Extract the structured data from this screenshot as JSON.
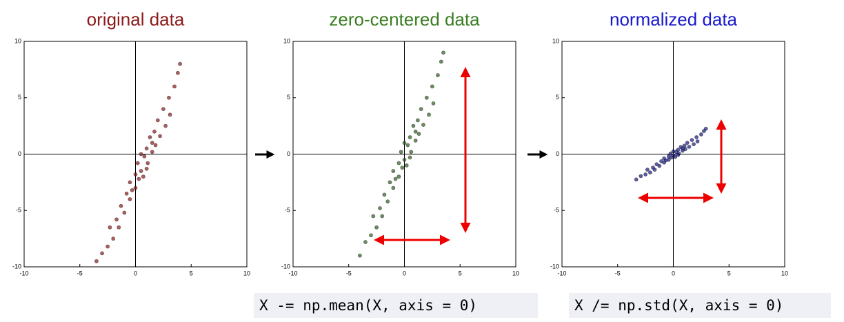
{
  "chart_data": [
    {
      "type": "scatter",
      "title": "original data",
      "color": "#8b1a1a",
      "title_color": "#8b1a1a",
      "xlim": [
        -10,
        10
      ],
      "ylim": [
        -10,
        10
      ],
      "xticks": [
        -10,
        -5,
        0,
        5,
        10
      ],
      "yticks": [
        -10,
        -5,
        0,
        5,
        10
      ],
      "x": [
        -3,
        -2.5,
        -2.3,
        -2,
        -1.7,
        -1.5,
        -1.3,
        -1,
        -0.8,
        -0.5,
        -0.5,
        -0.3,
        0,
        0,
        0.2,
        0.5,
        0.5,
        0.7,
        0.8,
        1,
        1.1,
        1.3,
        1.5,
        1.7,
        1.8,
        2,
        2.2,
        2.5,
        2.7,
        3,
        3.1,
        3.5,
        3.8,
        4,
        -3.5,
        1,
        0.3,
        1.5
      ],
      "y": [
        -8.8,
        -8.2,
        -6.5,
        -7.5,
        -5.8,
        -6.5,
        -4.6,
        -5.2,
        -3.5,
        -4,
        -2.5,
        -3.2,
        -1.8,
        -3,
        -0.8,
        -1.5,
        0,
        -2,
        -0.2,
        0.5,
        -0.8,
        1.5,
        0.2,
        2,
        0.8,
        3,
        1.6,
        4,
        2.5,
        5,
        3.5,
        6,
        7.2,
        8,
        -9.5,
        -1.3,
        -2.2,
        1
      ]
    },
    {
      "type": "scatter",
      "title": "zero-centered data",
      "color": "#2d5e1f",
      "title_color": "#3a7d22",
      "xlim": [
        -10,
        10
      ],
      "ylim": [
        -10,
        10
      ],
      "xticks": [
        -10,
        -5,
        0,
        5,
        10
      ],
      "yticks": [
        -10,
        -5,
        0,
        5,
        10
      ],
      "x": [
        -3.5,
        -3,
        -2.8,
        -2.5,
        -2.2,
        -2,
        -1.8,
        -1.5,
        -1.3,
        -1,
        -1,
        -0.8,
        -0.5,
        -0.5,
        -0.3,
        0,
        0,
        0.2,
        0.3,
        0.5,
        0.6,
        0.8,
        1,
        1.2,
        1.3,
        1.5,
        1.7,
        2,
        2.2,
        2.5,
        2.6,
        3,
        3.3,
        3.5,
        -4,
        0.5,
        -0.2,
        1
      ],
      "y": [
        -7.8,
        -7.2,
        -5.5,
        -6.5,
        -4.8,
        -5.5,
        -3.6,
        -4.2,
        -2.5,
        -3,
        -1.5,
        -2.2,
        -0.8,
        -2,
        0.2,
        -0.5,
        1,
        -1,
        0.8,
        1.5,
        0.2,
        2.5,
        1.2,
        3,
        1.8,
        4,
        2.6,
        5,
        3.5,
        6,
        4.5,
        7,
        8.2,
        9,
        -9,
        -0.3,
        -1.2,
        2
      ]
    },
    {
      "type": "scatter",
      "title": "normalized data",
      "color": "#1a1a80",
      "title_color": "#1a1acc",
      "xlim": [
        -10,
        10
      ],
      "ylim": [
        -10,
        10
      ],
      "xticks": [
        -10,
        -5,
        0,
        5,
        10
      ],
      "yticks": [
        -10,
        -5,
        0,
        5,
        10
      ],
      "x": [
        -2.92,
        -2.5,
        -2.33,
        -2.08,
        -1.83,
        -1.67,
        -1.5,
        -1.25,
        -1.08,
        -0.83,
        -0.83,
        -0.67,
        -0.42,
        -0.42,
        -0.25,
        0,
        0,
        0.17,
        0.25,
        0.42,
        0.5,
        0.67,
        0.83,
        1,
        1.08,
        1.25,
        1.42,
        1.67,
        1.83,
        2.08,
        2.17,
        2.5,
        2.75,
        2.92,
        -3.33,
        0.42,
        -0.17,
        0.83
      ],
      "y": [
        -1.95,
        -1.8,
        -1.38,
        -1.63,
        -1.2,
        -1.38,
        -0.9,
        -1.05,
        -0.63,
        -0.75,
        -0.38,
        -0.55,
        -0.2,
        -0.5,
        0.05,
        -0.13,
        0.25,
        -0.25,
        0.2,
        0.38,
        0.05,
        0.63,
        0.3,
        0.75,
        0.45,
        1,
        0.65,
        1.25,
        0.88,
        1.5,
        1.13,
        1.75,
        2.05,
        2.25,
        -2.25,
        -0.08,
        -0.3,
        0.5
      ]
    }
  ],
  "code": [
    "X -= np.mean(X, axis = 0)",
    "X /= np.std(X, axis = 0)"
  ]
}
